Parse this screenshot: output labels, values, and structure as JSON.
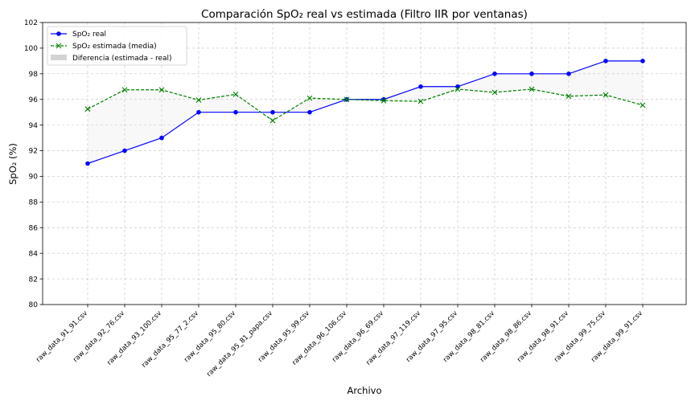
{
  "chart_data": {
    "type": "line",
    "title": "Comparación SpO₂ real vs estimada (Filtro IIR por ventanas)",
    "xlabel": "Archivo",
    "ylabel": "SpO₂ (%)",
    "categories": [
      "raw_data_91_91.csv",
      "raw_data_92_76.csv",
      "raw_data_93_100.csv",
      "raw_data_95_77_2.csv",
      "raw_data_95_80.csv",
      "raw_data_95_81_papa.csv",
      "raw_data_95_99.csv",
      "raw_data_96_106.csv",
      "raw_data_96_69.csv",
      "raw_data_97_119.csv",
      "raw_data_97_95.csv",
      "raw_data_98_81.csv",
      "raw_data_98_86.csv",
      "raw_data_98_91.csv",
      "raw_data_99_75.csv",
      "raw_data_99_91.csv"
    ],
    "series": [
      {
        "name": "SpO₂ real",
        "color": "#0000ff",
        "marker": "circle",
        "linestyle": "solid",
        "values": [
          91,
          92,
          93,
          95,
          95,
          95,
          95,
          96,
          96,
          97,
          97,
          98,
          98,
          98,
          99,
          99
        ]
      },
      {
        "name": "SpO₂ estimada (media)",
        "color": "#008000",
        "marker": "x",
        "linestyle": "dashed",
        "values": [
          95.25,
          96.75,
          96.75,
          95.95,
          96.4,
          94.35,
          96.1,
          96.0,
          95.9,
          95.85,
          96.8,
          96.55,
          96.8,
          96.25,
          96.35,
          95.55
        ]
      }
    ],
    "band": {
      "name": "Diferencia (estimada - real)",
      "color": "#d3d3d3"
    },
    "ylim": [
      80,
      102
    ],
    "yticks": [
      80,
      82,
      84,
      86,
      88,
      90,
      92,
      94,
      96,
      98,
      100,
      102
    ],
    "grid": true,
    "legend_position": "top-left"
  }
}
